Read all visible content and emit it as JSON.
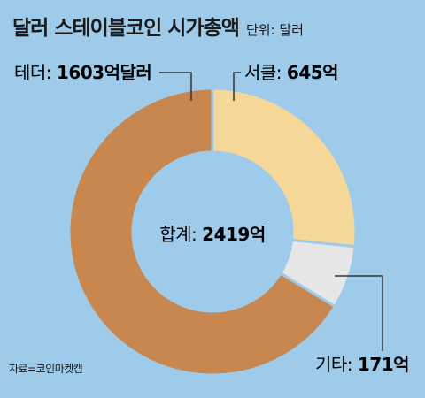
{
  "title": "달러 스테이블코인 시가총액",
  "unit_note": "단위: 달러",
  "source": "자료=코인마켓캡",
  "colors": {
    "background": "#9fcbea",
    "tether": "#c8874f",
    "circle": "#f5d899",
    "others": "#e6e6e6",
    "leader": "#333333"
  },
  "chart_data": {
    "type": "pie",
    "donut": true,
    "total_label": "합계: ",
    "total_value": "2419억",
    "slices": [
      {
        "label": "서클: ",
        "value_text": "645억",
        "value": 645
      },
      {
        "label": "기타: ",
        "value_text": "171억",
        "value": 171
      },
      {
        "label": "테더: ",
        "value_text": "1603억달러",
        "value": 1603
      }
    ]
  }
}
